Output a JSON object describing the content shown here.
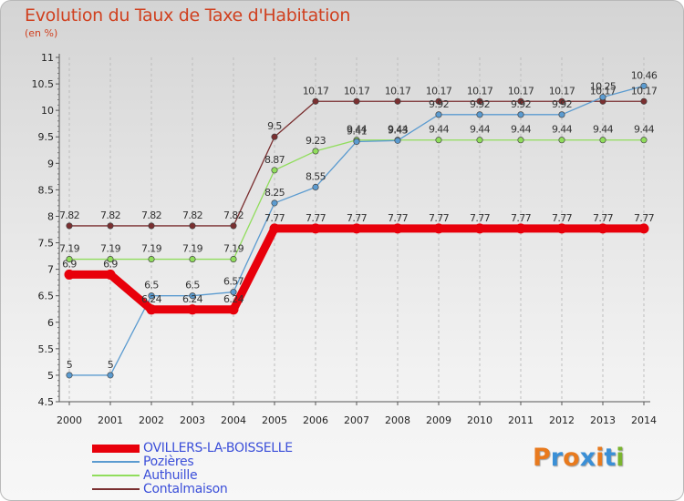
{
  "chart_data": {
    "type": "line",
    "title": "Evolution du Taux de Taxe d'Habitation",
    "subtitle": "(en %)",
    "x": [
      "2000",
      "2001",
      "2002",
      "2003",
      "2004",
      "2005",
      "2006",
      "2007",
      "2008",
      "2009",
      "2010",
      "2011",
      "2012",
      "2013",
      "2014"
    ],
    "ylim": [
      4.5,
      11
    ],
    "yticks": [
      "4.5",
      "5",
      "5.5",
      "6",
      "6.5",
      "7",
      "7.5",
      "8",
      "8.5",
      "9",
      "9.5",
      "10",
      "10.5",
      "11"
    ],
    "grid": "vertical dashed",
    "legend_position": "bottom-left",
    "series": [
      {
        "name": "OVILLERS-LA-BOISSELLE",
        "color": "#e8000b",
        "values": [
          6.9,
          6.9,
          6.24,
          6.24,
          6.24,
          7.77,
          7.77,
          7.77,
          7.77,
          7.77,
          7.77,
          7.77,
          7.77,
          7.77,
          7.77
        ],
        "labels": [
          "6.9",
          "6.9",
          "6.24",
          "6.24",
          "6.24",
          "7.77",
          "7.77",
          "7.77",
          "7.77",
          "7.77",
          "7.77",
          "7.77",
          "7.77",
          "7.77",
          "7.77"
        ]
      },
      {
        "name": "Pozières",
        "color": "#5b9bd0",
        "values": [
          5,
          5,
          6.5,
          6.5,
          6.57,
          8.25,
          8.55,
          9.41,
          9.43,
          9.92,
          9.92,
          9.92,
          9.92,
          10.25,
          10.46
        ],
        "labels": [
          "5",
          "5",
          "6.5",
          "6.5",
          "6.57",
          "8.25",
          "8.55",
          "9.41",
          "9.43",
          "9.92",
          "9.92",
          "9.92",
          "9.92",
          "10.25",
          "10.46"
        ]
      },
      {
        "name": "Authuille",
        "color": "#90dd5c",
        "values": [
          7.19,
          7.19,
          7.19,
          7.19,
          7.19,
          8.87,
          9.23,
          9.44,
          9.44,
          9.44,
          9.44,
          9.44,
          9.44,
          9.44,
          9.44
        ],
        "labels": [
          "7.19",
          "7.19",
          "7.19",
          "7.19",
          "7.19",
          "8.87",
          "9.23",
          "9.44",
          "9.44",
          "9.44",
          "9.44",
          "9.44",
          "9.44",
          "9.44",
          "9.44"
        ]
      },
      {
        "name": "Contalmaison",
        "color": "#7a2f30",
        "values": [
          7.82,
          7.82,
          7.82,
          7.82,
          7.82,
          9.5,
          10.17,
          10.17,
          10.17,
          10.17,
          10.17,
          10.17,
          10.17,
          10.17,
          10.17
        ],
        "labels": [
          "7.82",
          "7.82",
          "7.82",
          "7.82",
          "7.82",
          "9.5",
          "10.17",
          "10.17",
          "10.17",
          "10.17",
          "10.17",
          "10.17",
          "10.17",
          "10.17",
          "10.17"
        ]
      }
    ]
  },
  "legend": {
    "items": [
      {
        "label": "OVILLERS-LA-BOISSELLE",
        "color": "#e8000b"
      },
      {
        "label": "Pozières",
        "color": "#5b9bd0"
      },
      {
        "label": "Authuille",
        "color": "#90dd5c"
      },
      {
        "label": "Contalmaison",
        "color": "#7a2f30"
      }
    ]
  },
  "logo": {
    "text": "Proxiti",
    "colors": [
      "#e87a1e",
      "#3a8fd6",
      "#e87a1e",
      "#3a8fd6",
      "#e87a1e",
      "#3a8fd6",
      "#7ab42e"
    ]
  }
}
